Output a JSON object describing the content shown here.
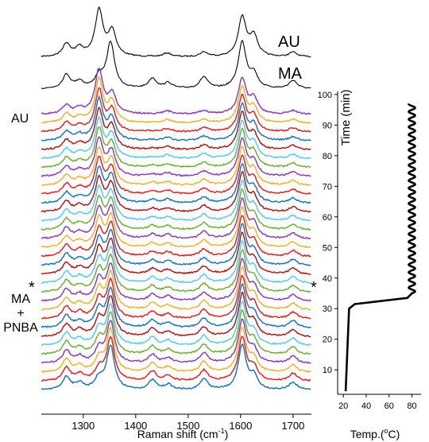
{
  "chart_data": [
    {
      "type": "line",
      "xlabel": "Raman shift (cm",
      "xlabel_sup": "-1",
      "xlabel_end": ")",
      "xlim": [
        1220,
        1735
      ],
      "x_ticks": [
        1300,
        1400,
        1500,
        1600,
        1700
      ],
      "y_axis": "none (spectra offset vertically)",
      "grid": false,
      "reference_spectra": [
        {
          "name": "AU",
          "color": "#000000",
          "peaks": [
            [
              1268,
              0.28
            ],
            [
              1293,
              0.18
            ],
            [
              1330,
              1.0
            ],
            [
              1355,
              0.55
            ],
            [
              1460,
              0.08
            ],
            [
              1530,
              0.1
            ],
            [
              1603,
              0.85
            ],
            [
              1625,
              0.45
            ],
            [
              1700,
              0.1
            ]
          ]
        },
        {
          "name": "MA",
          "color": "#000000",
          "peaks": [
            [
              1268,
              0.3
            ],
            [
              1293,
              0.15
            ],
            [
              1330,
              0.25
            ],
            [
              1352,
              1.0
            ],
            [
              1432,
              0.22
            ],
            [
              1462,
              0.12
            ],
            [
              1530,
              0.25
            ],
            [
              1603,
              1.0
            ],
            [
              1625,
              0.3
            ],
            [
              1700,
              0.18
            ]
          ]
        }
      ],
      "stack": {
        "count": 32,
        "top_label": "AU",
        "bottom_label_lines": [
          "MA",
          "+",
          "PNBA"
        ],
        "marker": "*",
        "marker_index_from_bottom": 8,
        "color_cycle": [
          "#1f77b4",
          "#d62728",
          "#e8b43a",
          "#8c3fb4",
          "#6fae3c",
          "#5ac8f0",
          "#a81c1c"
        ],
        "bottom_peaks": [
          [
            1268,
            0.3
          ],
          [
            1293,
            0.15
          ],
          [
            1330,
            0.25
          ],
          [
            1352,
            1.0
          ],
          [
            1432,
            0.22
          ],
          [
            1462,
            0.12
          ],
          [
            1530,
            0.25
          ],
          [
            1603,
            1.0
          ],
          [
            1625,
            0.3
          ],
          [
            1700,
            0.18
          ]
        ],
        "top_peaks": [
          [
            1268,
            0.2
          ],
          [
            1293,
            0.12
          ],
          [
            1330,
            1.0
          ],
          [
            1355,
            0.45
          ],
          [
            1460,
            0.07
          ],
          [
            1530,
            0.08
          ],
          [
            1603,
            0.8
          ],
          [
            1625,
            0.35
          ],
          [
            1700,
            0.08
          ]
        ]
      }
    },
    {
      "type": "line",
      "xlabel": "Temp.(",
      "xlabel_sup": "o",
      "xlabel_end": "C)",
      "ylabel": "Time (min)",
      "xlim": [
        15,
        88
      ],
      "ylim": [
        2,
        101
      ],
      "x_ticks": [
        20,
        40,
        60,
        80
      ],
      "y_ticks": [
        10,
        20,
        30,
        40,
        50,
        60,
        70,
        80,
        90,
        100
      ],
      "grid": false,
      "series": [
        {
          "color": "#000000",
          "segments": [
            [
              [
                22,
                3
              ],
              [
                25,
                30
              ],
              [
                30,
                31.5
              ],
              [
                76,
                33.5
              ],
              [
                80,
                35
              ]
            ]
          ],
          "oscillation": {
            "from_time": 35,
            "to_time": 97,
            "center_temp": 80,
            "amplitude": 2.8,
            "period_min": 2.5
          }
        }
      ]
    }
  ]
}
